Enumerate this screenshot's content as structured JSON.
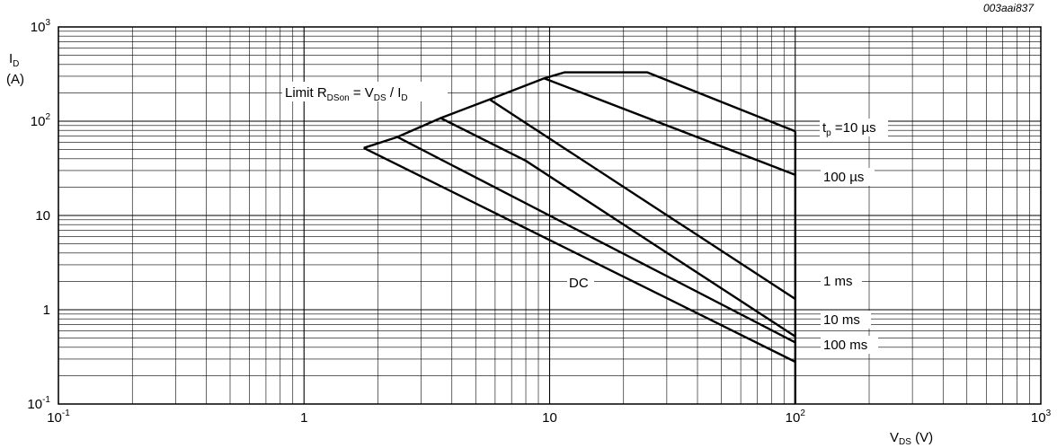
{
  "document_code": "003aai837",
  "chart_data": {
    "type": "line",
    "x_scale": "log",
    "y_scale": "log",
    "xlim": [
      0.1,
      1000
    ],
    "ylim": [
      0.1,
      1000
    ],
    "grid": true,
    "xlabel": {
      "main": "V",
      "sub": "DS",
      "unit": " (V)"
    },
    "ylabel": {
      "main": "I",
      "sub": "D",
      "unit": "(A)"
    },
    "x_ticks": [
      {
        "value": 0.1,
        "base": "10",
        "exp": "-1"
      },
      {
        "value": 1,
        "base": "1",
        "exp": ""
      },
      {
        "value": 10,
        "base": "10",
        "exp": ""
      },
      {
        "value": 100,
        "base": "10",
        "exp": "2"
      },
      {
        "value": 1000,
        "base": "10",
        "exp": "3"
      }
    ],
    "y_ticks": [
      {
        "value": 0.1,
        "base": "10",
        "exp": "-1"
      },
      {
        "value": 1,
        "base": "1",
        "exp": ""
      },
      {
        "value": 10,
        "base": "10",
        "exp": ""
      },
      {
        "value": 100,
        "base": "10",
        "exp": "2"
      },
      {
        "value": 1000,
        "base": "10",
        "exp": "3"
      }
    ],
    "series": [
      {
        "points": [
          [
            1.75,
            52
          ],
          [
            2.4,
            68
          ],
          [
            3.6,
            108
          ],
          [
            5.7,
            170
          ],
          [
            9.5,
            285
          ],
          [
            11.5,
            330
          ],
          [
            25,
            330
          ],
          [
            100,
            78
          ]
        ]
      },
      {
        "points": [
          [
            9.5,
            285
          ],
          [
            100,
            27
          ]
        ]
      },
      {
        "points": [
          [
            5.7,
            170
          ],
          [
            100,
            1.3
          ]
        ]
      },
      {
        "points": [
          [
            3.6,
            108
          ],
          [
            8,
            38
          ],
          [
            100,
            0.52
          ]
        ]
      },
      {
        "points": [
          [
            2.4,
            68
          ],
          [
            100,
            0.45
          ]
        ]
      },
      {
        "points": [
          [
            1.75,
            52
          ],
          [
            100,
            0.28
          ]
        ]
      },
      {
        "points": [
          [
            100,
            78
          ],
          [
            100,
            0.1
          ]
        ]
      }
    ],
    "annotations": {
      "limit": {
        "prefix": "Limit R",
        "sub": "DSon",
        "mid": " = V",
        "sub2": "DS",
        "mid2": " / I",
        "sub3": "D"
      },
      "tp": {
        "prefix": "t",
        "sub": "p",
        "text": " =10 µs"
      },
      "t100us": "100 µs",
      "t1ms": "1 ms",
      "t10ms": "10 ms",
      "t100ms": "100 ms",
      "dc": "DC"
    }
  }
}
